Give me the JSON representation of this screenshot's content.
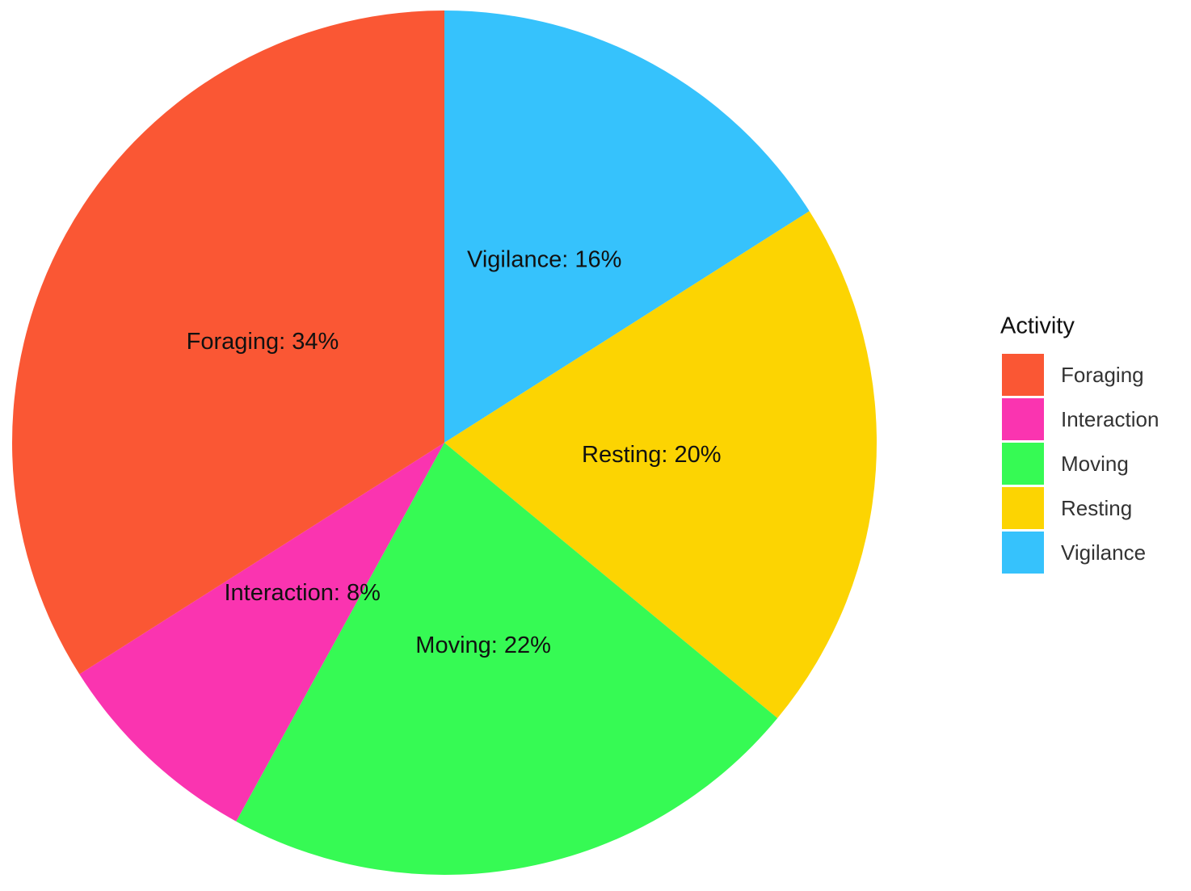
{
  "chart_data": {
    "type": "pie",
    "legend_title": "Activity",
    "categories": [
      "Foraging",
      "Interaction",
      "Moving",
      "Resting",
      "Vigilance"
    ],
    "values": [
      34,
      8,
      22,
      20,
      16
    ],
    "value_labels": [
      "Foraging: 34%",
      "Interaction: 8%",
      "Moving: 22%",
      "Resting: 20%",
      "Vigilance: 16%"
    ],
    "colors": [
      "#fa5734",
      "#fa34b0",
      "#36fa54",
      "#fcd402",
      "#36c2fc"
    ],
    "legend": "right"
  }
}
